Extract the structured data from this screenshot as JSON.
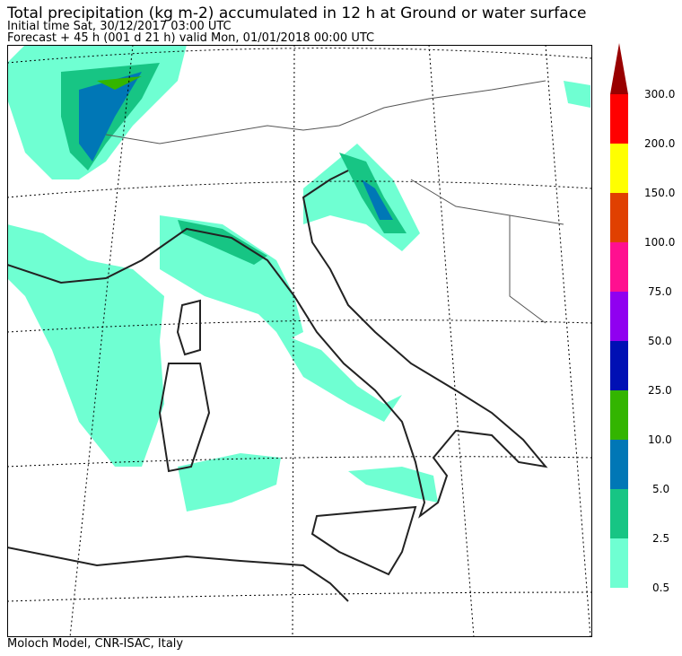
{
  "header": {
    "title": "Total precipitation (kg m-2) accumulated in  12 h at Ground or water surface",
    "initial_time": "Initial time  Sat, 30/12/2017  03:00 UTC",
    "forecast": "Forecast  +  45 h  (001 d 21 h)  valid Mon, 01/01/2018 00:00 UTC"
  },
  "colorbar": {
    "labels": [
      "300.0",
      "200.0",
      "150.0",
      "100.0",
      "75.0",
      "50.0",
      "25.0",
      "10.0",
      "5.0",
      "2.5",
      "0.5"
    ],
    "colors": [
      "#ff0000",
      "#ffff00",
      "#e04000",
      "#ff1090",
      "#9000f0",
      "#0010b4",
      "#33b500",
      "#0077b6",
      "#17c584",
      "#6fffd2"
    ],
    "arrow_color": "#990000"
  },
  "footer": "Moloch Model, CNR-ISAC, Italy"
}
